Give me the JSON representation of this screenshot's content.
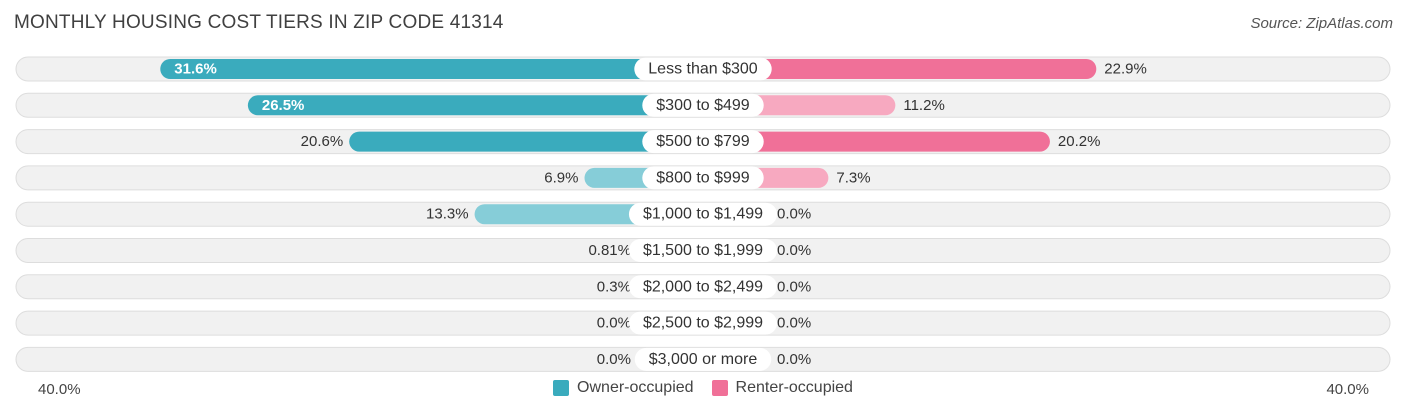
{
  "header": {
    "title": "MONTHLY HOUSING COST TIERS IN ZIP CODE 41314",
    "source": "Source: ZipAtlas.com"
  },
  "axis": {
    "left_label": "40.0%",
    "right_label": "40.0%"
  },
  "legend": {
    "owner_label": "Owner-occupied",
    "renter_label": "Renter-occupied"
  },
  "colors": {
    "owner_strong": "#3aabbd",
    "owner_light": "#86cdd8",
    "renter_strong": "#f07098",
    "renter_light": "#f7a9c0",
    "row_background": "#f1f1f1",
    "row_border": "#dddddd"
  },
  "chart_data": {
    "type": "bar",
    "orientation": "horizontal-diverging",
    "categories": [
      "Less than $300",
      "$300 to $499",
      "$500 to $799",
      "$800 to $999",
      "$1,000 to $1,499",
      "$1,500 to $1,999",
      "$2,000 to $2,499",
      "$2,500 to $2,999",
      "$3,000 or more"
    ],
    "series": [
      {
        "name": "Owner-occupied",
        "side": "left",
        "values": [
          31.6,
          26.5,
          20.6,
          6.9,
          13.3,
          0.81,
          0.3,
          0.0,
          0.0
        ],
        "labels": [
          "31.6%",
          "26.5%",
          "20.6%",
          "6.9%",
          "13.3%",
          "0.81%",
          "0.3%",
          "0.0%",
          "0.0%"
        ]
      },
      {
        "name": "Renter-occupied",
        "side": "right",
        "values": [
          22.9,
          11.2,
          20.2,
          7.3,
          0.0,
          0.0,
          0.0,
          0.0,
          0.0
        ],
        "labels": [
          "22.9%",
          "11.2%",
          "20.2%",
          "7.3%",
          "0.0%",
          "0.0%",
          "0.0%",
          "0.0%",
          "0.0%"
        ]
      }
    ],
    "xlim": [
      -40,
      40
    ],
    "legend_position": "bottom-center"
  }
}
